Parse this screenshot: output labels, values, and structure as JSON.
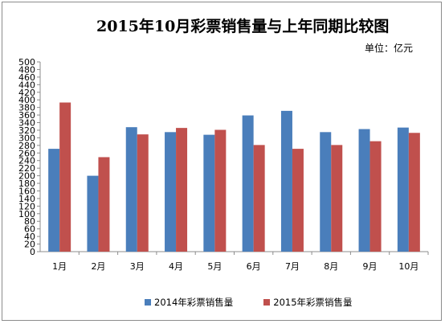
{
  "chart_data": {
    "type": "bar",
    "title": "2015年10月彩票销售量与上年同期比较图",
    "unit_label": "单位：亿元",
    "categories": [
      "1月",
      "2月",
      "3月",
      "4月",
      "5月",
      "6月",
      "7月",
      "8月",
      "9月",
      "10月"
    ],
    "series": [
      {
        "name": "2014年彩票销售量",
        "color": "#4a7ebb",
        "values": [
          271,
          200,
          328,
          315,
          308,
          359,
          371,
          315,
          323,
          327
        ]
      },
      {
        "name": "2015年彩票销售量",
        "color": "#c0504d",
        "values": [
          393,
          249,
          309,
          326,
          321,
          281,
          271,
          281,
          291,
          313
        ]
      }
    ],
    "ylim": [
      0,
      500
    ],
    "ytick_step": 20,
    "grid": false,
    "legend_position": "bottom"
  }
}
